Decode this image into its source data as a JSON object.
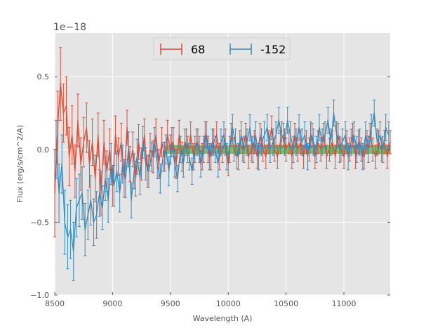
{
  "chart_data": {
    "type": "line",
    "title": "",
    "xlabel": "Wavelength (A)",
    "ylabel": "Flux (erg/s/cm^2/A)",
    "y_offset_label": "1e−18",
    "xlim": [
      8500,
      11400
    ],
    "ylim": [
      -1.0,
      0.8
    ],
    "x_ticks": [
      8500,
      9000,
      9500,
      10000,
      10500,
      11000
    ],
    "x_tick_labels": [
      "8500",
      "9000",
      "9500",
      "10000",
      "10500",
      "11000"
    ],
    "y_ticks": [
      -1.0,
      -0.5,
      0.0,
      0.5
    ],
    "y_tick_labels": [
      "−1.0",
      "−0.5",
      "0.0",
      "0.5"
    ],
    "grid": true,
    "legend_position": "top-center",
    "background": "#e5e5e5",
    "shaded_band": {
      "x_range": [
        9450,
        11400
      ],
      "y_range": [
        -0.03,
        0.03
      ],
      "color": "#2ca02c"
    },
    "series": [
      {
        "name": "68",
        "color": "#e24a33",
        "x": [
          8500,
          8525,
          8550,
          8575,
          8600,
          8625,
          8650,
          8675,
          8700,
          8725,
          8750,
          8775,
          8800,
          8825,
          8850,
          8875,
          8900,
          8925,
          8950,
          8975,
          9000,
          9025,
          9050,
          9075,
          9100,
          9125,
          9150,
          9175,
          9200,
          9225,
          9250,
          9275,
          9300,
          9325,
          9350,
          9375,
          9400,
          9425,
          9450,
          9475,
          9500,
          9525,
          9550,
          9575,
          9600,
          9625,
          9650,
          9675,
          9700,
          9725,
          9750,
          9775,
          9800,
          9825,
          9850,
          9875,
          9900,
          9925,
          9950,
          9975,
          10000,
          10025,
          10050,
          10075,
          10100,
          10125,
          10150,
          10175,
          10200,
          10225,
          10250,
          10275,
          10300,
          10325,
          10350,
          10375,
          10400,
          10425,
          10450,
          10475,
          10500,
          10525,
          10550,
          10575,
          10600,
          10625,
          10650,
          10675,
          10700,
          10725,
          10750,
          10775,
          10800,
          10825,
          10850,
          10875,
          10900,
          10925,
          10950,
          10975,
          11000,
          11025,
          11050,
          11075,
          11100,
          11125,
          11150,
          11175,
          11200,
          11225,
          11250,
          11275,
          11300,
          11325,
          11350,
          11375,
          11400
        ],
        "y": [
          -0.3,
          0.15,
          0.45,
          0.25,
          0.3,
          -0.05,
          0.1,
          -0.15,
          0.2,
          -0.1,
          0.05,
          0.15,
          -0.1,
          0.05,
          -0.2,
          0.1,
          -0.3,
          0.05,
          -0.15,
          0.0,
          -0.25,
          0.1,
          -0.05,
          0.05,
          -0.2,
          0.15,
          -0.1,
          0.0,
          -0.2,
          0.05,
          -0.1,
          0.1,
          -0.15,
          0.0,
          -0.05,
          0.1,
          -0.1,
          0.05,
          -0.05,
          0.1,
          0.0,
          0.05,
          -0.1,
          0.1,
          -0.05,
          0.05,
          0.0,
          0.1,
          -0.05,
          0.05,
          0.0,
          -0.05,
          0.1,
          0.0,
          -0.05,
          0.05,
          0.1,
          -0.05,
          0.0,
          0.05,
          -0.1,
          0.1,
          0.0,
          -0.05,
          0.05,
          0.0,
          0.1,
          -0.05,
          0.0,
          0.05,
          -0.05,
          0.1,
          0.0,
          -0.05,
          0.05,
          0.15,
          0.0,
          -0.05,
          0.05,
          0.1,
          0.0,
          0.05,
          -0.05,
          0.1,
          0.0,
          0.05,
          -0.05,
          0.05,
          0.0,
          0.1,
          -0.05,
          0.05,
          0.0,
          0.1,
          -0.05,
          0.0,
          0.05,
          -0.05,
          0.1,
          0.0,
          -0.05,
          0.05,
          0.0,
          0.1,
          -0.05,
          0.05,
          0.0,
          -0.05,
          0.05,
          0.1,
          0.0,
          -0.05,
          0.05,
          0.0,
          0.05,
          -0.05,
          0.05
        ],
        "err": [
          0.3,
          0.25,
          0.25,
          0.2,
          0.2,
          0.2,
          0.2,
          0.18,
          0.18,
          0.18,
          0.17,
          0.17,
          0.16,
          0.16,
          0.16,
          0.15,
          0.15,
          0.15,
          0.14,
          0.14,
          0.14,
          0.13,
          0.13,
          0.13,
          0.13,
          0.12,
          0.12,
          0.12,
          0.12,
          0.12,
          0.11,
          0.11,
          0.11,
          0.11,
          0.11,
          0.11,
          0.1,
          0.1,
          0.1,
          0.1,
          0.1,
          0.1,
          0.1,
          0.1,
          0.1,
          0.09,
          0.09,
          0.09,
          0.09,
          0.09,
          0.09,
          0.09,
          0.09,
          0.09,
          0.09,
          0.09,
          0.09,
          0.09,
          0.09,
          0.09,
          0.08,
          0.08,
          0.08,
          0.08,
          0.08,
          0.08,
          0.08,
          0.08,
          0.08,
          0.08,
          0.08,
          0.08,
          0.08,
          0.08,
          0.08,
          0.08,
          0.08,
          0.08,
          0.08,
          0.08,
          0.08,
          0.08,
          0.08,
          0.08,
          0.08,
          0.08,
          0.08,
          0.08,
          0.08,
          0.08,
          0.08,
          0.08,
          0.08,
          0.08,
          0.08,
          0.08,
          0.08,
          0.08,
          0.08,
          0.08,
          0.08,
          0.08,
          0.08,
          0.08,
          0.08,
          0.08,
          0.08,
          0.08,
          0.08,
          0.08,
          0.08,
          0.08,
          0.08,
          0.08,
          0.08,
          0.08,
          0.08
        ]
      },
      {
        "name": "-152",
        "color": "#348abd",
        "x": [
          8512,
          8537,
          8562,
          8587,
          8612,
          8637,
          8662,
          8687,
          8712,
          8737,
          8762,
          8787,
          8812,
          8837,
          8862,
          8887,
          8912,
          8937,
          8962,
          8987,
          9012,
          9037,
          9062,
          9087,
          9112,
          9137,
          9162,
          9187,
          9212,
          9237,
          9262,
          9287,
          9312,
          9337,
          9362,
          9387,
          9412,
          9437,
          9462,
          9487,
          9512,
          9537,
          9562,
          9587,
          9612,
          9637,
          9662,
          9687,
          9712,
          9737,
          9762,
          9787,
          9812,
          9837,
          9862,
          9887,
          9912,
          9937,
          9962,
          9987,
          10012,
          10037,
          10062,
          10087,
          10112,
          10137,
          10162,
          10187,
          10212,
          10237,
          10262,
          10287,
          10312,
          10337,
          10362,
          10387,
          10412,
          10437,
          10462,
          10487,
          10512,
          10537,
          10562,
          10587,
          10612,
          10637,
          10662,
          10687,
          10712,
          10737,
          10762,
          10787,
          10812,
          10837,
          10862,
          10887,
          10912,
          10937,
          10962,
          10987,
          11012,
          11037,
          11062,
          11087,
          11112,
          11137,
          11162,
          11187,
          11212,
          11237,
          11262,
          11287,
          11312,
          11337,
          11362,
          11387
        ],
        "y": [
          0.0,
          -0.3,
          -0.1,
          -0.5,
          -0.6,
          -0.55,
          -0.7,
          -0.4,
          -0.35,
          -0.3,
          -0.55,
          -0.45,
          -0.35,
          -0.5,
          -0.45,
          -0.3,
          -0.4,
          -0.2,
          -0.35,
          -0.1,
          -0.25,
          -0.15,
          -0.3,
          -0.1,
          -0.2,
          0.0,
          -0.35,
          -0.15,
          -0.05,
          -0.2,
          0.05,
          -0.1,
          -0.15,
          -0.05,
          0.05,
          -0.1,
          -0.2,
          -0.05,
          0.0,
          -0.15,
          0.05,
          -0.1,
          -0.2,
          0.0,
          -0.1,
          0.05,
          -0.05,
          -0.15,
          0.0,
          0.05,
          -0.1,
          0.0,
          0.1,
          -0.05,
          0.05,
          0.0,
          -0.1,
          0.05,
          0.1,
          -0.05,
          0.0,
          0.15,
          0.05,
          -0.05,
          0.1,
          0.0,
          0.05,
          0.15,
          0.0,
          0.1,
          -0.05,
          0.05,
          0.1,
          0.15,
          0.0,
          0.05,
          0.1,
          0.2,
          0.1,
          0.05,
          0.2,
          0.1,
          0.0,
          0.05,
          0.15,
          0.05,
          0.1,
          -0.05,
          0.1,
          0.05,
          0.0,
          0.15,
          0.05,
          0.1,
          0.2,
          0.05,
          0.25,
          0.1,
          0.0,
          0.05,
          0.1,
          -0.05,
          0.05,
          0.1,
          0.0,
          0.05,
          -0.05,
          0.1,
          0.0,
          0.15,
          0.25,
          0.05,
          0.1,
          0.0,
          0.15,
          0.1
        ],
        "err": [
          0.2,
          0.2,
          0.2,
          0.22,
          0.22,
          0.2,
          0.2,
          0.2,
          0.18,
          0.18,
          0.18,
          0.17,
          0.17,
          0.16,
          0.16,
          0.16,
          0.15,
          0.15,
          0.15,
          0.14,
          0.14,
          0.14,
          0.13,
          0.13,
          0.13,
          0.12,
          0.12,
          0.12,
          0.12,
          0.11,
          0.11,
          0.11,
          0.11,
          0.1,
          0.1,
          0.1,
          0.1,
          0.1,
          0.1,
          0.1,
          0.1,
          0.09,
          0.09,
          0.09,
          0.09,
          0.09,
          0.09,
          0.09,
          0.09,
          0.09,
          0.09,
          0.09,
          0.09,
          0.09,
          0.09,
          0.09,
          0.09,
          0.09,
          0.09,
          0.09,
          0.09,
          0.09,
          0.09,
          0.09,
          0.09,
          0.09,
          0.09,
          0.09,
          0.09,
          0.09,
          0.09,
          0.09,
          0.09,
          0.09,
          0.09,
          0.09,
          0.09,
          0.09,
          0.09,
          0.09,
          0.09,
          0.09,
          0.09,
          0.09,
          0.09,
          0.09,
          0.09,
          0.09,
          0.09,
          0.09,
          0.09,
          0.09,
          0.09,
          0.09,
          0.09,
          0.09,
          0.09,
          0.09,
          0.09,
          0.09,
          0.09,
          0.09,
          0.09,
          0.09,
          0.09,
          0.09,
          0.09,
          0.09,
          0.09,
          0.09,
          0.09,
          0.09,
          0.09,
          0.09,
          0.09,
          0.09
        ]
      }
    ]
  }
}
